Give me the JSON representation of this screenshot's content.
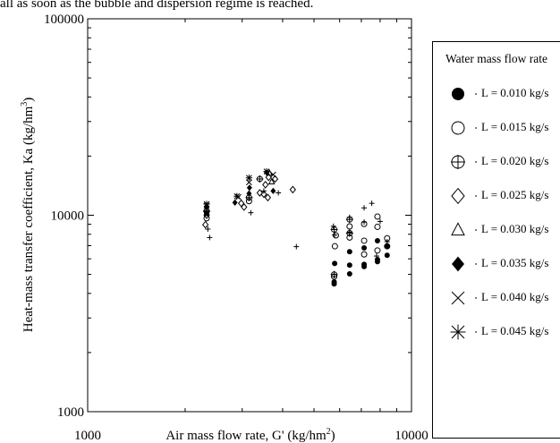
{
  "page": {
    "top_text": "all as soon as the bubble and dispersion regime is reached."
  },
  "chart_data": {
    "type": "scatter",
    "xlabel": "Air mass flow rate, G' (kg/hm",
    "xlabel_sup": "2",
    "xlabel_end": ")",
    "ylabel": "Heat-mass transfer coefficient, Ka (kg/hm",
    "ylabel_sup": "3",
    "ylabel_end": ")",
    "x_scale": "log",
    "y_scale": "log",
    "xlim": [
      1000,
      10000
    ],
    "ylim": [
      1000,
      100000
    ],
    "x_ticks": [
      {
        "value": 1000,
        "label": "1000"
      },
      {
        "value": 10000,
        "label": "10000"
      }
    ],
    "y_ticks": [
      {
        "value": 1000,
        "label": "1000"
      },
      {
        "value": 10000,
        "label": "10000"
      },
      {
        "value": 100000,
        "label": "100000"
      }
    ],
    "grid": false,
    "legend": {
      "title": "Water mass flow rate",
      "placement": "right"
    },
    "series": [
      {
        "name": "L = 0.010 kg/s",
        "marker": "filled-circle",
        "points": [
          [
            2330,
            10200
          ],
          [
            5770,
            4470
          ],
          [
            5770,
            4580
          ],
          [
            5790,
            5680
          ],
          [
            6440,
            5030
          ],
          [
            6440,
            5570
          ],
          [
            6440,
            6520
          ],
          [
            7140,
            5480
          ],
          [
            7140,
            5620
          ],
          [
            7140,
            6820
          ],
          [
            7850,
            5800
          ],
          [
            7850,
            5950
          ],
          [
            7850,
            7420
          ],
          [
            8410,
            6250
          ],
          [
            8410,
            6970
          ]
        ]
      },
      {
        "name": "L = 0.015 kg/s",
        "marker": "open-circle",
        "points": [
          [
            2330,
            9650
          ],
          [
            3150,
            11800
          ],
          [
            5770,
            4870
          ],
          [
            5800,
            6950
          ],
          [
            5840,
            7900
          ],
          [
            6440,
            7700
          ],
          [
            6440,
            8770
          ],
          [
            7140,
            6320
          ],
          [
            7140,
            7420
          ],
          [
            7140,
            9030
          ],
          [
            7850,
            6620
          ],
          [
            7850,
            8730
          ],
          [
            7850,
            9850
          ],
          [
            8410,
            6950
          ],
          [
            8410,
            7630
          ]
        ]
      },
      {
        "name": "L = 0.020 kg/s",
        "marker": "circle-plus",
        "points": [
          [
            2330,
            10500
          ],
          [
            3150,
            12300
          ],
          [
            3400,
            15300
          ],
          [
            5770,
            4990
          ],
          [
            5770,
            8460
          ],
          [
            6440,
            8110
          ],
          [
            6440,
            9520
          ]
        ]
      },
      {
        "name": "L = 0.025 kg/s",
        "marker": "open-diamond",
        "points": [
          [
            2330,
            10000
          ],
          [
            2310,
            8950
          ],
          [
            2980,
            11500
          ],
          [
            3040,
            11000
          ],
          [
            3540,
            14300
          ],
          [
            3620,
            15600
          ],
          [
            3600,
            12300
          ],
          [
            3790,
            15300
          ],
          [
            4300,
            13500
          ],
          [
            3500,
            12800
          ],
          [
            3400,
            13000
          ]
        ]
      },
      {
        "name": "L = 0.030 kg/s",
        "marker": "open-triangle",
        "points": [
          [
            2330,
            10700
          ],
          [
            3700,
            14800
          ],
          [
            3640,
            16400
          ]
        ]
      },
      {
        "name": "L = 0.035 kg/s",
        "marker": "filled-diamond",
        "points": [
          [
            2330,
            11000
          ],
          [
            2330,
            10350
          ],
          [
            2850,
            11600
          ],
          [
            3150,
            12900
          ],
          [
            3570,
            16500
          ],
          [
            3740,
            13300
          ],
          [
            3160,
            13800
          ]
        ]
      },
      {
        "name": "L = 0.040 kg/s",
        "marker": "x-cross",
        "points": [
          [
            2330,
            11200
          ],
          [
            2920,
            12400
          ],
          [
            3150,
            14700
          ],
          [
            3740,
            16100
          ]
        ]
      },
      {
        "name": "L = 0.045 kg/s",
        "marker": "asterisk",
        "points": [
          [
            2330,
            11400
          ],
          [
            2890,
            12500
          ],
          [
            3150,
            15500
          ],
          [
            3570,
            16700
          ]
        ]
      },
      {
        "name": "",
        "marker": "small-plus",
        "points": [
          [
            2380,
            7700
          ],
          [
            3190,
            10300
          ],
          [
            3500,
            13300
          ],
          [
            3880,
            13000
          ],
          [
            4410,
            6920
          ],
          [
            5740,
            8790
          ],
          [
            5790,
            7930
          ],
          [
            6440,
            9760
          ],
          [
            6440,
            8200
          ],
          [
            7140,
            10900
          ],
          [
            7140,
            9230
          ],
          [
            7540,
            11500
          ],
          [
            8000,
            9300
          ],
          [
            8410,
            7330
          ],
          [
            7800,
            6200
          ],
          [
            2350,
            8500
          ]
        ]
      }
    ]
  }
}
